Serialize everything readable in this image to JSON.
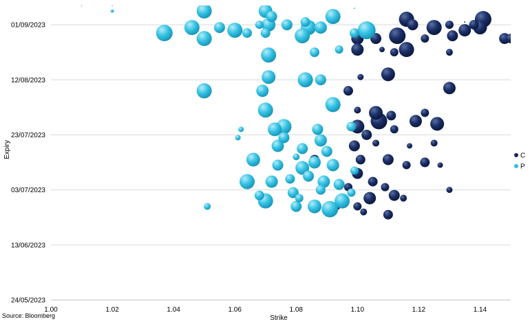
{
  "chart_data": {
    "type": "scatter",
    "subtype": "bubble",
    "xlabel": "Strike",
    "ylabel": "Expiry",
    "xlim": [
      1.0,
      1.15
    ],
    "x_ticks": [
      1.0,
      1.02,
      1.04,
      1.06,
      1.08,
      1.1,
      1.12,
      1.14
    ],
    "x_tick_labels": [
      "1.00",
      "1.02",
      "1.04",
      "1.06",
      "1.08",
      "1.10",
      "1.12",
      "1.14"
    ],
    "ylim": [
      "2023-05-24",
      "2023-09-08"
    ],
    "y_ticks": [
      "2023-05-24",
      "2023-06-13",
      "2023-07-03",
      "2023-07-23",
      "2023-08-12",
      "2023-09-01"
    ],
    "y_tick_labels": [
      "24/05/2023",
      "13/06/2023",
      "03/07/2023",
      "23/07/2023",
      "12/08/2023",
      "01/09/2023"
    ],
    "grid": "horizontal",
    "legend_position": "right",
    "series": [
      {
        "name": "C",
        "color": "#14285e",
        "points": [
          [
            1.116,
            "2023-09-03",
            22
          ],
          [
            1.135,
            "2023-09-02",
            2
          ],
          [
            1.14,
            "2023-09-02",
            2
          ],
          [
            1.125,
            "2023-08-31",
            22
          ],
          [
            1.13,
            "2023-09-01",
            12
          ],
          [
            1.138,
            "2023-09-01",
            14
          ],
          [
            1.141,
            "2023-09-03",
            24
          ],
          [
            1.135,
            "2023-08-30",
            18
          ],
          [
            1.14,
            "2023-08-31",
            20
          ],
          [
            1.118,
            "2023-09-01",
            16
          ],
          [
            1.113,
            "2023-08-28",
            24
          ],
          [
            1.131,
            "2023-08-28",
            16
          ],
          [
            1.112,
            "2023-08-22",
            12
          ],
          [
            1.1,
            "2023-08-27",
            18
          ],
          [
            1.106,
            "2023-08-27",
            16
          ],
          [
            1.122,
            "2023-08-27",
            12
          ],
          [
            1.148,
            "2023-08-27",
            16
          ],
          [
            1.15,
            "2023-08-27",
            14
          ],
          [
            1.1,
            "2023-08-23",
            18
          ],
          [
            1.116,
            "2023-08-23",
            22
          ],
          [
            1.108,
            "2023-08-23",
            8
          ],
          [
            1.13,
            "2023-08-22",
            10
          ],
          [
            1.11,
            "2023-08-14",
            20
          ],
          [
            1.101,
            "2023-08-13",
            9
          ],
          [
            1.13,
            "2023-08-09",
            18
          ],
          [
            1.097,
            "2023-08-08",
            14
          ],
          [
            1.1,
            "2023-08-01",
            10
          ],
          [
            1.106,
            "2023-07-31",
            20
          ],
          [
            1.111,
            "2023-07-30",
            14
          ],
          [
            1.122,
            "2023-07-31",
            12
          ],
          [
            1.126,
            "2023-07-27",
            20
          ],
          [
            1.119,
            "2023-07-28",
            18
          ],
          [
            1.107,
            "2023-07-28",
            24
          ],
          [
            1.112,
            "2023-07-25",
            12
          ],
          [
            1.1,
            "2023-07-26",
            20
          ],
          [
            1.103,
            "2023-07-23",
            15
          ],
          [
            1.099,
            "2023-07-19",
            16
          ],
          [
            1.106,
            "2023-07-20",
            10
          ],
          [
            1.117,
            "2023-07-19",
            8
          ],
          [
            1.125,
            "2023-07-20",
            10
          ],
          [
            1.086,
            "2023-07-14",
            14
          ],
          [
            1.101,
            "2023-07-14",
            14
          ],
          [
            1.11,
            "2023-07-14",
            16
          ],
          [
            1.116,
            "2023-07-12",
            12
          ],
          [
            1.122,
            "2023-07-13",
            14
          ],
          [
            1.127,
            "2023-07-12",
            8
          ],
          [
            1.1,
            "2023-07-09",
            16
          ],
          [
            1.105,
            "2023-07-06",
            14
          ],
          [
            1.109,
            "2023-07-04",
            12
          ],
          [
            1.097,
            "2023-07-04",
            12
          ],
          [
            1.112,
            "2023-07-01",
            16
          ],
          [
            1.104,
            "2023-06-30",
            18
          ],
          [
            1.1,
            "2023-06-27",
            12
          ],
          [
            1.11,
            "2023-06-24",
            14
          ],
          [
            1.093,
            "2023-06-27",
            12
          ],
          [
            1.13,
            "2023-07-03",
            9
          ],
          [
            1.115,
            "2023-06-30",
            10
          ],
          [
            1.102,
            "2023-06-25",
            10
          ]
        ]
      },
      {
        "name": "P",
        "color": "#2dc0e2",
        "points": [
          [
            1.01,
            "2023-09-08",
            2
          ],
          [
            1.02,
            "2023-09-08",
            2
          ],
          [
            1.02,
            "2023-09-06",
            5
          ],
          [
            1.05,
            "2023-09-06",
            22
          ],
          [
            1.07,
            "2023-09-06",
            20
          ],
          [
            1.072,
            "2023-09-04",
            16
          ],
          [
            1.092,
            "2023-09-04",
            22
          ],
          [
            1.083,
            "2023-09-02",
            14
          ],
          [
            1.099,
            "2023-09-07",
            2
          ],
          [
            1.037,
            "2023-08-29",
            24
          ],
          [
            1.046,
            "2023-08-31",
            22
          ],
          [
            1.055,
            "2023-08-31",
            16
          ],
          [
            1.06,
            "2023-08-30",
            22
          ],
          [
            1.068,
            "2023-09-01",
            12
          ],
          [
            1.071,
            "2023-09-01",
            20
          ],
          [
            1.077,
            "2023-09-01",
            16
          ],
          [
            1.084,
            "2023-08-31",
            22
          ],
          [
            1.088,
            "2023-08-31",
            18
          ],
          [
            1.099,
            "2023-08-29",
            14
          ],
          [
            1.103,
            "2023-08-30",
            26
          ],
          [
            1.05,
            "2023-08-27",
            22
          ],
          [
            1.064,
            "2023-08-29",
            14
          ],
          [
            1.07,
            "2023-08-29",
            14
          ],
          [
            1.082,
            "2023-08-28",
            22
          ],
          [
            1.071,
            "2023-08-21",
            22
          ],
          [
            1.086,
            "2023-08-22",
            14
          ],
          [
            1.094,
            "2023-08-23",
            12
          ],
          [
            1.071,
            "2023-08-13",
            20
          ],
          [
            1.083,
            "2023-08-12",
            22
          ],
          [
            1.088,
            "2023-08-12",
            16
          ],
          [
            1.05,
            "2023-08-08",
            22
          ],
          [
            1.069,
            "2023-08-08",
            18
          ],
          [
            1.07,
            "2023-08-01",
            22
          ],
          [
            1.092,
            "2023-08-03",
            22
          ],
          [
            1.062,
            "2023-07-25",
            8
          ],
          [
            1.061,
            "2023-07-22",
            8
          ],
          [
            1.073,
            "2023-07-25",
            20
          ],
          [
            1.076,
            "2023-07-26",
            22
          ],
          [
            1.087,
            "2023-07-25",
            16
          ],
          [
            1.098,
            "2023-07-26",
            14
          ],
          [
            1.076,
            "2023-07-22",
            16
          ],
          [
            1.088,
            "2023-07-21",
            18
          ],
          [
            1.074,
            "2023-07-19",
            18
          ],
          [
            1.082,
            "2023-07-18",
            16
          ],
          [
            1.09,
            "2023-07-17",
            16
          ],
          [
            1.066,
            "2023-07-14",
            20
          ],
          [
            1.074,
            "2023-07-12",
            16
          ],
          [
            1.082,
            "2023-07-11",
            20
          ],
          [
            1.086,
            "2023-07-13",
            18
          ],
          [
            1.092,
            "2023-07-12",
            18
          ],
          [
            1.064,
            "2023-07-06",
            22
          ],
          [
            1.072,
            "2023-07-06",
            18
          ],
          [
            1.078,
            "2023-07-07",
            14
          ],
          [
            1.084,
            "2023-07-08",
            16
          ],
          [
            1.089,
            "2023-07-06",
            18
          ],
          [
            1.094,
            "2023-07-05",
            16
          ],
          [
            1.068,
            "2023-07-01",
            14
          ],
          [
            1.079,
            "2023-07-02",
            16
          ],
          [
            1.088,
            "2023-07-03",
            14
          ],
          [
            1.095,
            "2023-06-29",
            22
          ],
          [
            1.07,
            "2023-06-29",
            22
          ],
          [
            1.08,
            "2023-06-27",
            16
          ],
          [
            1.086,
            "2023-06-27",
            20
          ],
          [
            1.091,
            "2023-06-26",
            24
          ],
          [
            1.051,
            "2023-06-27",
            10
          ],
          [
            1.081,
            "2023-06-30",
            12
          ],
          [
            1.098,
            "2023-07-02",
            12
          ],
          [
            1.099,
            "2023-07-10",
            12
          ],
          [
            1.08,
            "2023-07-15",
            10
          ]
        ]
      }
    ]
  },
  "chart": {
    "source": "Source: Bloomberg",
    "legend": [
      {
        "label": "C",
        "color": "#14285e"
      },
      {
        "label": "P",
        "color": "#2dc0e2"
      }
    ]
  }
}
